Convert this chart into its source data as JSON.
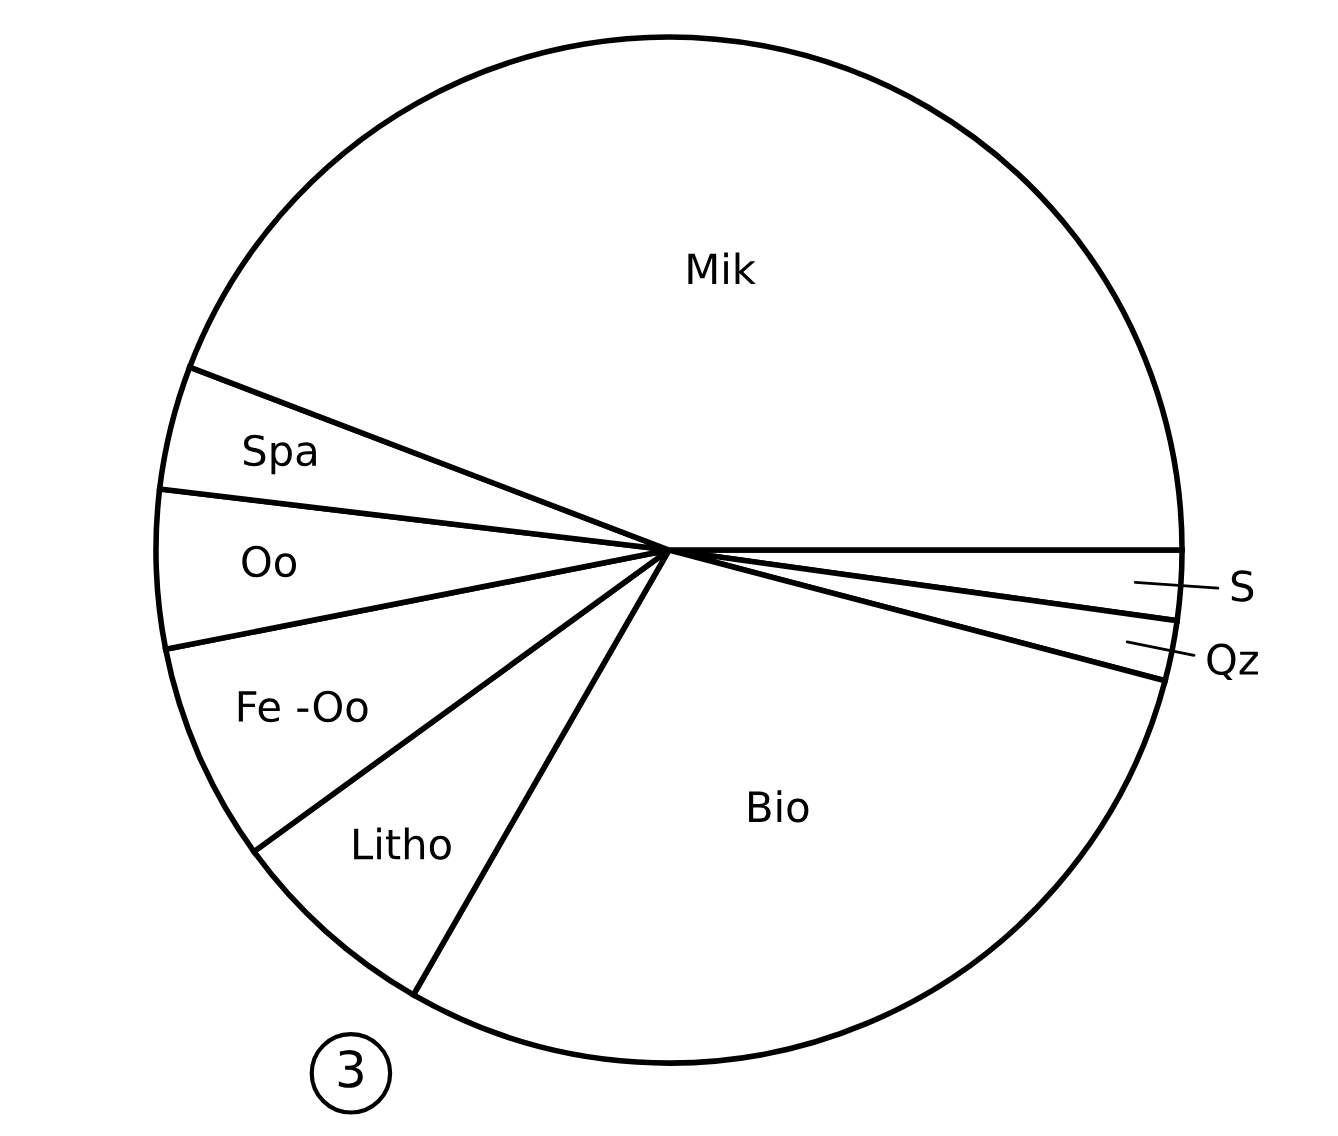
{
  "chart_data": {
    "type": "pie",
    "categories": [
      "S",
      "Qz",
      "Bio",
      "Litho",
      "Fe -Oo",
      "Oo",
      "Spa",
      "Mik"
    ],
    "values": [
      2.2,
      1.9,
      29.2,
      6.7,
      6.9,
      5.0,
      3.9,
      44.2
    ],
    "colors": [
      "#ffffff",
      "#ffffff",
      "#ffffff",
      "#ffffff",
      "#ffffff",
      "#ffffff",
      "#ffffff",
      "#ffffff"
    ],
    "annotations": [
      "3"
    ]
  }
}
